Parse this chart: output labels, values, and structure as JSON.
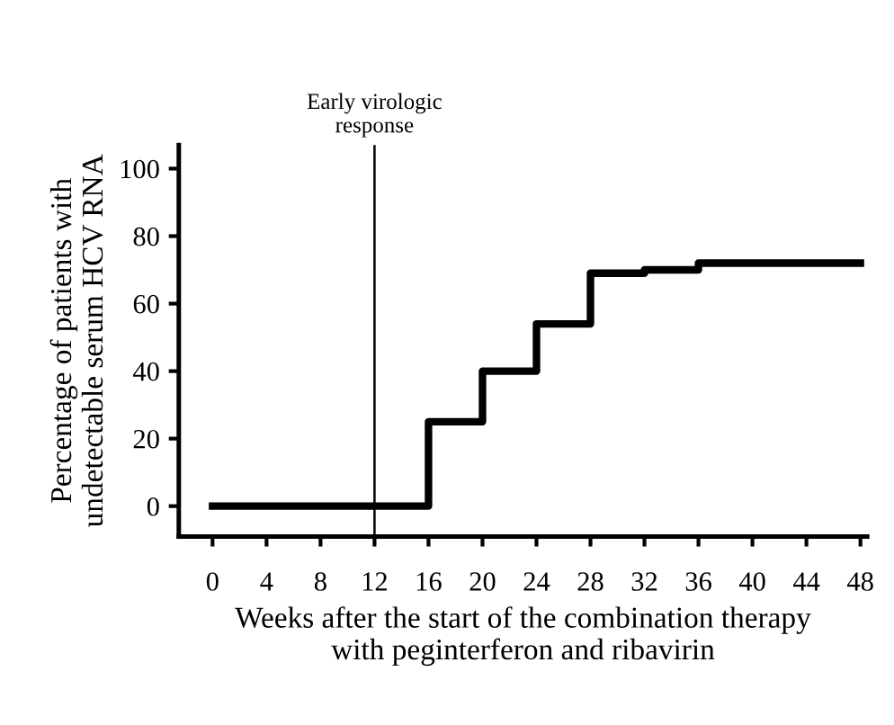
{
  "chart_data": {
    "type": "step",
    "xlabel": "Weeks after the start of the combination therapy\nwith peginterferon and ribavirin",
    "ylabel": "Percentage of patients with\nundetectable serum HCV RNA",
    "x": [
      0,
      16,
      20,
      24,
      28,
      32,
      36,
      48
    ],
    "series": [
      {
        "color": "#000000",
        "values": [
          0,
          25,
          40,
          54,
          69,
          70,
          72,
          72
        ]
      }
    ],
    "xlim": [
      -2.5,
      48.5
    ],
    "xticks": [
      0,
      4,
      8,
      12,
      16,
      20,
      24,
      28,
      32,
      36,
      40,
      44,
      48
    ],
    "ylim": [
      -9,
      107
    ],
    "yticks": [
      0,
      20,
      40,
      60,
      80,
      100
    ],
    "ref_lines": [
      {
        "axis": "x",
        "value": 12,
        "label": "Early virologic\nresponse",
        "color": "#000000"
      }
    ],
    "grid": false,
    "legend": false,
    "marker": "none",
    "line_style": "solid"
  }
}
